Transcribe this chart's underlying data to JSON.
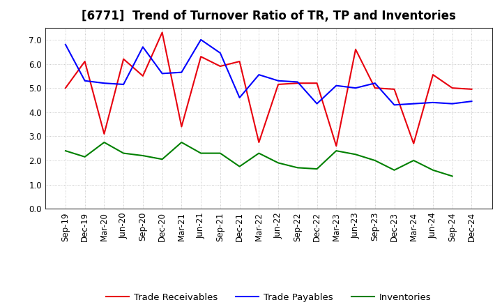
{
  "title": "[6771]  Trend of Turnover Ratio of TR, TP and Inventories",
  "x_labels": [
    "Sep-19",
    "Dec-19",
    "Mar-20",
    "Jun-20",
    "Sep-20",
    "Dec-20",
    "Mar-21",
    "Jun-21",
    "Sep-21",
    "Dec-21",
    "Mar-22",
    "Jun-22",
    "Sep-22",
    "Dec-22",
    "Mar-23",
    "Jun-23",
    "Sep-23",
    "Dec-23",
    "Mar-24",
    "Jun-24",
    "Sep-24",
    "Dec-24"
  ],
  "trade_receivables": [
    5.0,
    6.1,
    3.1,
    6.2,
    5.5,
    7.3,
    3.4,
    6.3,
    5.9,
    6.1,
    2.75,
    5.15,
    5.2,
    5.2,
    2.6,
    6.6,
    5.0,
    4.95,
    2.7,
    5.55,
    5.0,
    4.95
  ],
  "trade_payables": [
    6.8,
    5.3,
    5.2,
    5.15,
    6.7,
    5.6,
    5.65,
    7.0,
    6.45,
    4.6,
    5.55,
    5.3,
    5.25,
    4.35,
    5.1,
    5.0,
    5.2,
    4.3,
    4.35,
    4.4,
    4.35,
    4.45
  ],
  "inventories": [
    2.4,
    2.15,
    2.75,
    2.3,
    2.2,
    2.05,
    2.75,
    2.3,
    2.3,
    1.75,
    2.3,
    1.9,
    1.7,
    1.65,
    2.4,
    2.25,
    2.0,
    1.6,
    2.0,
    1.6,
    1.35,
    null
  ],
  "ylim": [
    0.0,
    7.5
  ],
  "yticks": [
    0.0,
    1.0,
    2.0,
    3.0,
    4.0,
    5.0,
    6.0,
    7.0
  ],
  "line_color_tr": "#e8000d",
  "line_color_tp": "#0000ff",
  "line_color_inv": "#008000",
  "legend_labels": [
    "Trade Receivables",
    "Trade Payables",
    "Inventories"
  ],
  "background_color": "#ffffff",
  "grid_color": "#bbbbbb",
  "title_fontsize": 12,
  "axis_fontsize": 8.5,
  "legend_fontsize": 9.5
}
